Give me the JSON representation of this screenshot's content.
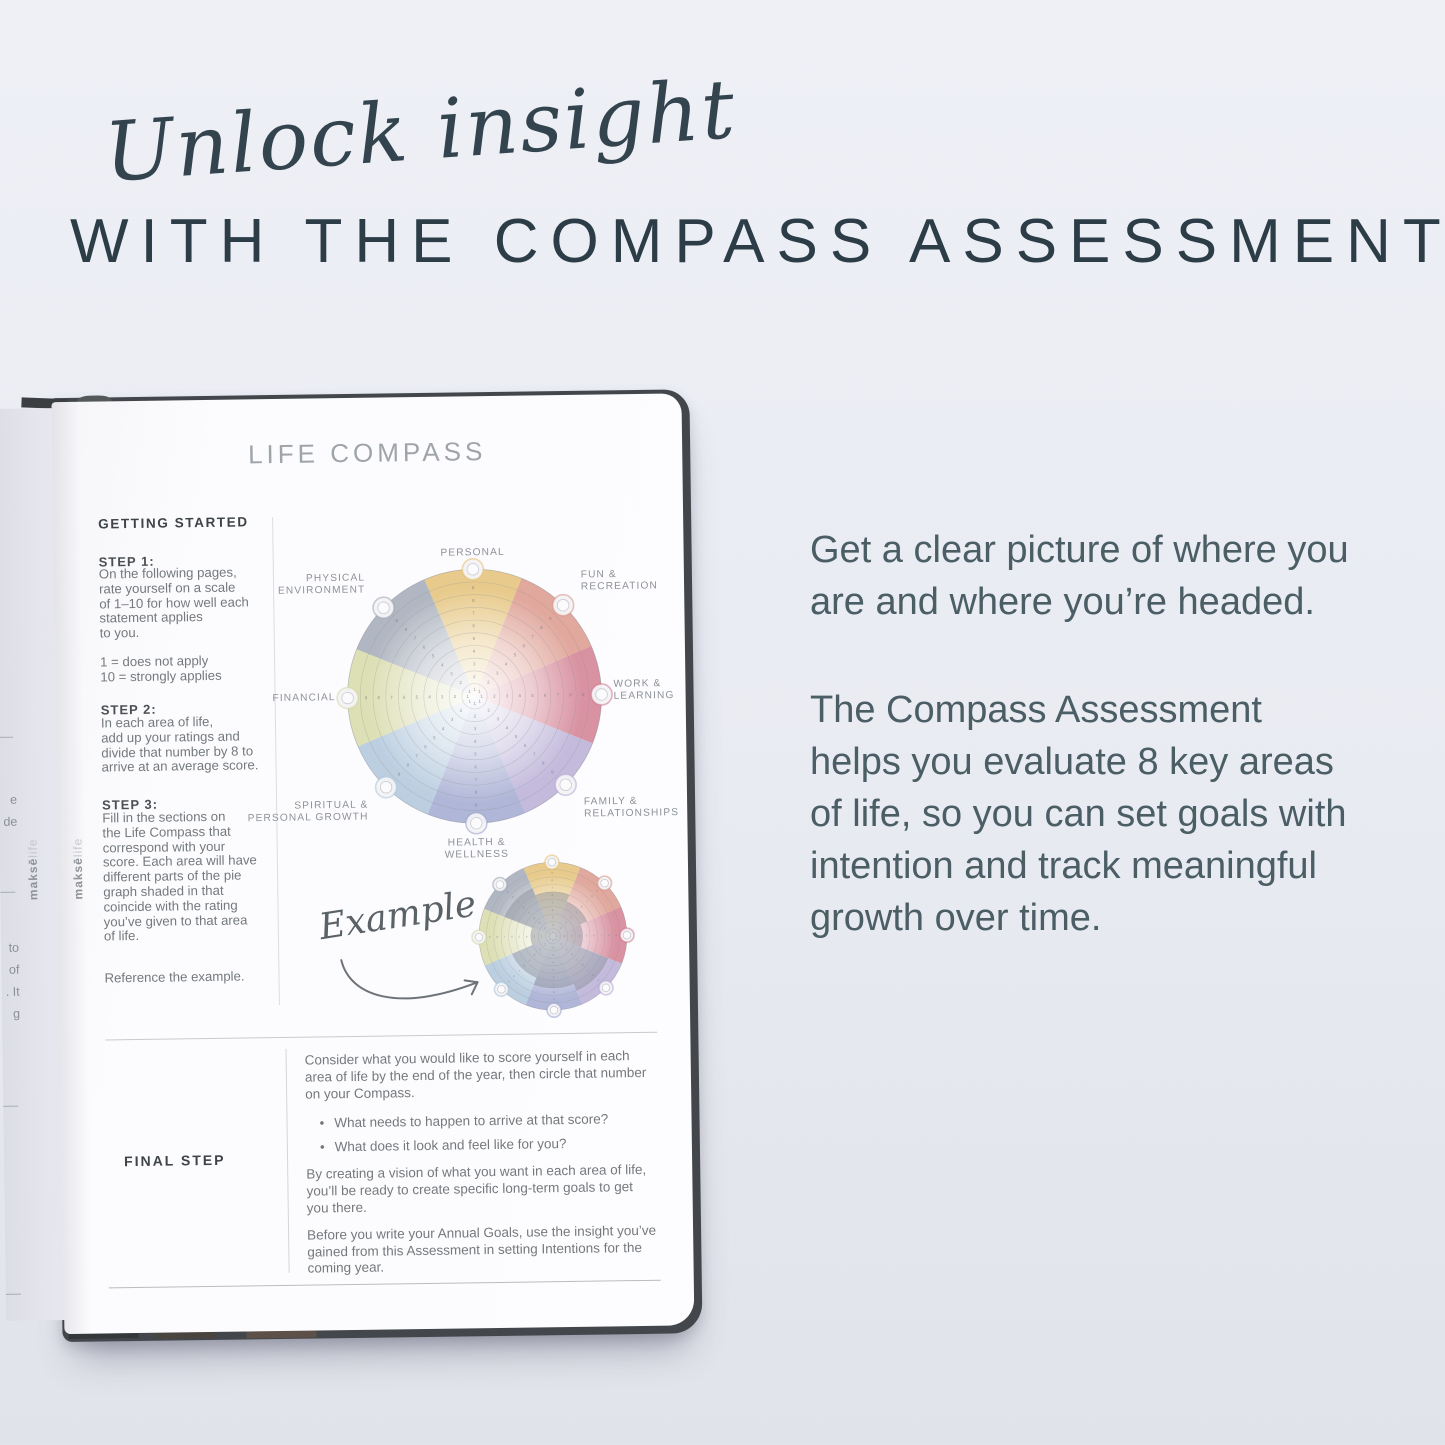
{
  "headline": {
    "script": "Unlock insight",
    "caps": "WITH THE COMPASS ASSESSMENT"
  },
  "right_panel": {
    "para1": "Get a clear picture of where you\nare and where you’re headed.",
    "para2": "The Compass Assessment\nhelps you evaluate 8 key areas\nof life, so you can set goals with\nintention and track meaningful\ngrowth over time."
  },
  "brand": {
    "bold_part": "maksē",
    "light_part": "life"
  },
  "page": {
    "title": "LIFE COMPASS",
    "getting_started": {
      "heading": "GETTING STARTED",
      "steps": [
        {
          "label": "STEP 1:",
          "text": "On the following pages,\nrate yourself on a scale\nof 1–10 for how well each\nstatement applies\nto you."
        },
        {
          "label": "",
          "text": "1 = does not apply\n10 = strongly applies"
        },
        {
          "label": "STEP 2:",
          "text": "In each area of life,\nadd up your ratings and\ndivide that number by 8 to\narrive at an average score."
        },
        {
          "label": "STEP 3:",
          "text": "Fill in the sections on\nthe Life Compass that\ncorrespond with your\nscore. Each area will have\ndifferent parts of the pie\ngraph shaded in that\ncoincide with the rating\nyou’ve given to that area\nof life."
        }
      ],
      "reference": "Reference the example."
    },
    "example_label": "Example",
    "final_step": {
      "label": "FINAL STEP",
      "para1": "Consider what you would like to score yourself in each\narea of life by the end of the year, then circle that number\non your Compass.",
      "bullets": [
        "What needs to happen to arrive at that score?",
        "What does it look and feel like for you?"
      ],
      "para2": "By creating a vision of what you want in each area of life,\nyou’ll be ready to create specific long-term goals to get\nyou there.",
      "para3": "Before you write your Annual Goals, use the insight you’ve\ngained from this Assessment in setting Intentions for the\ncoming year."
    },
    "left_page_fragments": [
      "e\nde",
      "to\nof\n. It\ng"
    ]
  },
  "chart_data": {
    "type": "radial-compass",
    "title": "LIFE COMPASS",
    "scale_min": 1,
    "scale_max": 10,
    "rings": 10,
    "sectors": [
      {
        "label": "PERSONAL",
        "color": "#e2bd6b",
        "example_score": 6
      },
      {
        "label": "FUN &\nRECREATION",
        "color": "#d98f82",
        "example_score": 5
      },
      {
        "label": "WORK &\nLEARNING",
        "color": "#ce7386",
        "example_score": 4
      },
      {
        "label": "FAMILY &\nRELATIONSHIPS",
        "color": "#b2a6d2",
        "example_score": 8
      },
      {
        "label": "HEALTH &\nWELLNESS",
        "color": "#98a1cc",
        "example_score": 7
      },
      {
        "label": "SPIRITUAL &\nPERSONAL GROWTH",
        "color": "#a9c2d8",
        "example_score": 6
      },
      {
        "label": "FINANCIAL",
        "color": "#d3d6a0",
        "example_score": 3
      },
      {
        "label": "PHYSICAL\nENVIRONMENT",
        "color": "#9ba3b1",
        "example_score": 7
      }
    ]
  },
  "colors": {
    "headline": "#2c3d48",
    "right_text": "#4b5d65",
    "page_body_text": "#74797d",
    "cover_edge": "#43474b"
  }
}
